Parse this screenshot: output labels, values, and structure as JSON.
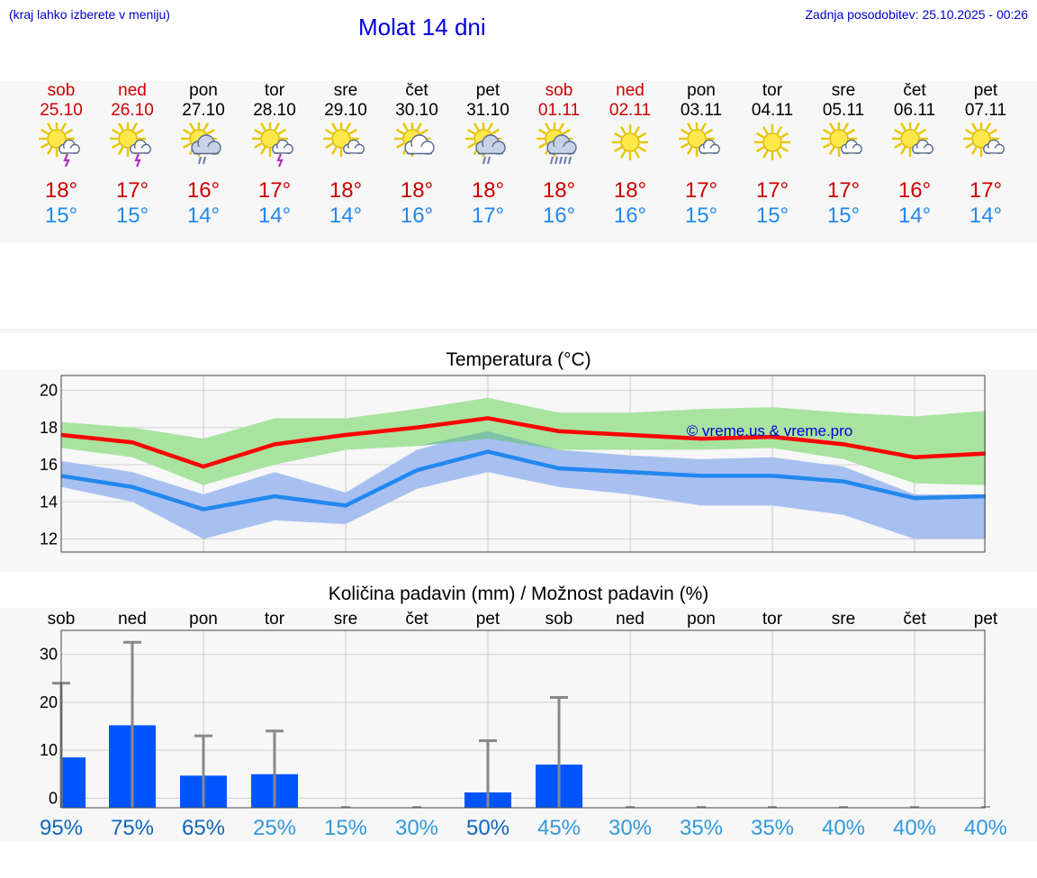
{
  "header": {
    "location_hint": "(kraj lahko izberete v meniju)",
    "title": "Molat 14 dni",
    "last_update": "Zadnja posodobitev: 25.10.2025 - 00:26"
  },
  "colors": {
    "weekend": "#cc0000",
    "weekday": "#000000",
    "max_temp": "#cc0000",
    "min_temp": "#2288ee",
    "max_line": "#ff0000",
    "min_line": "#2288ee",
    "max_band": "#a8e4a0",
    "min_band": "#a8c0f0",
    "overlap_band": "#7fc2a8",
    "precip_bar": "#0055ff",
    "error_bar": "#888888",
    "prob_dark": "#1166bb",
    "prob_light": "#3399dd",
    "watermark": "#0000cc"
  },
  "days": [
    {
      "name": "sob",
      "date": "25.10",
      "weekend": true,
      "icon": "sun-cloud-storm-icon",
      "max": "18°",
      "min": "15°"
    },
    {
      "name": "ned",
      "date": "26.10",
      "weekend": true,
      "icon": "sun-cloud-storm-icon",
      "max": "17°",
      "min": "15°"
    },
    {
      "name": "pon",
      "date": "27.10",
      "weekend": false,
      "icon": "sun-cloud-rain-icon",
      "max": "16°",
      "min": "14°"
    },
    {
      "name": "tor",
      "date": "28.10",
      "weekend": false,
      "icon": "sun-cloud-storm-icon",
      "max": "17°",
      "min": "14°"
    },
    {
      "name": "sre",
      "date": "29.10",
      "weekend": false,
      "icon": "sun-small-cloud-icon",
      "max": "18°",
      "min": "14°"
    },
    {
      "name": "čet",
      "date": "30.10",
      "weekend": false,
      "icon": "sun-cloud-icon",
      "max": "18°",
      "min": "16°"
    },
    {
      "name": "pet",
      "date": "31.10",
      "weekend": false,
      "icon": "sun-cloud-rain-icon",
      "max": "18°",
      "min": "17°"
    },
    {
      "name": "sob",
      "date": "01.11",
      "weekend": true,
      "icon": "sun-cloud-heavy-rain-icon",
      "max": "18°",
      "min": "16°"
    },
    {
      "name": "ned",
      "date": "02.11",
      "weekend": true,
      "icon": "sun-icon",
      "max": "18°",
      "min": "16°"
    },
    {
      "name": "pon",
      "date": "03.11",
      "weekend": false,
      "icon": "sun-small-cloud-icon",
      "max": "17°",
      "min": "15°"
    },
    {
      "name": "tor",
      "date": "04.11",
      "weekend": false,
      "icon": "sun-icon",
      "max": "17°",
      "min": "15°"
    },
    {
      "name": "sre",
      "date": "05.11",
      "weekend": false,
      "icon": "sun-small-cloud-icon",
      "max": "17°",
      "min": "15°"
    },
    {
      "name": "čet",
      "date": "06.11",
      "weekend": false,
      "icon": "sun-small-cloud-icon",
      "max": "16°",
      "min": "14°"
    },
    {
      "name": "pet",
      "date": "07.11",
      "weekend": false,
      "icon": "sun-small-cloud-icon",
      "max": "17°",
      "min": "14°"
    }
  ],
  "chart_data": [
    {
      "type": "line",
      "title": "Temperatura (°C)",
      "watermark": "© vreme.us & vreme.pro",
      "x": [
        0,
        1,
        2,
        3,
        4,
        5,
        6,
        7,
        8,
        9,
        10,
        11,
        12,
        13
      ],
      "ylim": [
        11.3,
        20.8
      ],
      "yticks": [
        12,
        14,
        16,
        18,
        20
      ],
      "grid": true,
      "series": [
        {
          "role": "max",
          "values": [
            17.6,
            17.2,
            15.9,
            17.1,
            17.6,
            18.0,
            18.5,
            17.8,
            17.6,
            17.4,
            17.5,
            17.1,
            16.4,
            16.6
          ],
          "band_low": [
            16.9,
            16.4,
            14.9,
            16.0,
            16.8,
            17.0,
            17.4,
            16.8,
            16.8,
            16.8,
            16.9,
            16.3,
            15.0,
            14.9
          ],
          "band_high": [
            18.3,
            18.0,
            17.4,
            18.5,
            18.5,
            19.0,
            19.6,
            18.8,
            18.8,
            19.0,
            19.1,
            18.8,
            18.6,
            18.9
          ]
        },
        {
          "role": "min",
          "values": [
            15.4,
            14.8,
            13.6,
            14.3,
            13.8,
            15.7,
            16.7,
            15.8,
            15.6,
            15.4,
            15.4,
            15.1,
            14.2,
            14.3
          ],
          "band_low": [
            14.8,
            14.0,
            12.0,
            13.0,
            12.8,
            14.7,
            15.6,
            14.8,
            14.4,
            13.8,
            13.8,
            13.3,
            12.0,
            12.0
          ],
          "band_high": [
            16.2,
            15.6,
            14.4,
            15.6,
            14.5,
            16.8,
            17.8,
            16.8,
            16.5,
            16.3,
            16.4,
            15.9,
            14.4,
            14.4
          ]
        }
      ]
    },
    {
      "type": "bar",
      "title": "Količina padavin (mm) / Možnost padavin (%)",
      "categories": [
        "sob",
        "ned",
        "pon",
        "tor",
        "sre",
        "čet",
        "pet",
        "sob",
        "ned",
        "pon",
        "tor",
        "sre",
        "čet",
        "pet"
      ],
      "values": [
        8.5,
        15.2,
        4.7,
        5.0,
        0,
        0,
        1.2,
        7.0,
        0,
        0,
        0,
        0,
        0,
        0
      ],
      "error_high": [
        24,
        32.5,
        13,
        14,
        0,
        0,
        12,
        21,
        0,
        0,
        0,
        0,
        0,
        0
      ],
      "probability": [
        "95%",
        "75%",
        "65%",
        "25%",
        "15%",
        "30%",
        "50%",
        "45%",
        "30%",
        "35%",
        "35%",
        "40%",
        "40%",
        "40%"
      ],
      "probability_emphasis": [
        true,
        true,
        true,
        false,
        false,
        false,
        true,
        false,
        false,
        false,
        false,
        false,
        false,
        false
      ],
      "ylim": [
        -2,
        35
      ],
      "yticks": [
        0,
        10,
        20,
        30
      ],
      "grid": true
    }
  ]
}
